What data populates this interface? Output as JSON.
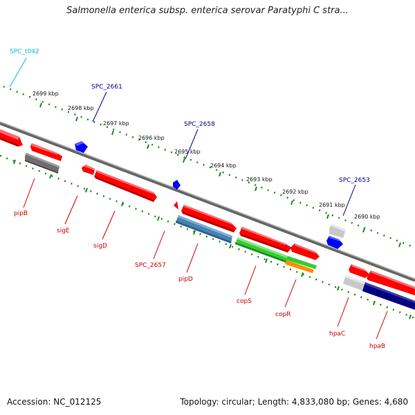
{
  "title": "Salmonella enterica subsp. enterica serovar Paratyphi C stra...",
  "footer": {
    "accession": "Accession: NC_012125",
    "summary": "Topology: circular; Length: 4,833,080 bp; Genes: 4,680"
  },
  "colors": {
    "backbone": "#808080",
    "tick_track": "#228b22",
    "gene_red": "#ff0000",
    "gene_blue": "#0000ff",
    "gene_gray": "#707070",
    "gene_lightgray": "#c8c8c8",
    "gene_steelblue": "#4682b4",
    "gene_green": "#32cd32",
    "gene_orange": "#ff8c00",
    "gene_navy": "#000080",
    "label_cyan": "#00bcd4",
    "label_blue": "#00008b",
    "label_red": "#cc0000"
  },
  "kbp_labels": [
    "2699 kbp",
    "2698 kbp",
    "2697 kbp",
    "2696 kbp",
    "2695 kbp",
    "2694 kbp",
    "2693 kbp",
    "2692 kbp",
    "2691 kbp",
    "2690 kbp"
  ],
  "top_labels": [
    {
      "text": "SPC_t042",
      "color": "#00bcd4"
    },
    {
      "text": "SPC_2661",
      "color": "#00008b"
    },
    {
      "text": "SPC_2658",
      "color": "#00008b"
    },
    {
      "text": "SPC_2653",
      "color": "#00008b"
    }
  ],
  "bottom_labels": [
    {
      "text": "pipB",
      "color": "#cc0000"
    },
    {
      "text": "sigE",
      "color": "#cc0000"
    },
    {
      "text": "sigD",
      "color": "#cc0000"
    },
    {
      "text": "SPC_2657",
      "color": "#cc0000"
    },
    {
      "text": "pipD",
      "color": "#cc0000"
    },
    {
      "text": "copS",
      "color": "#cc0000"
    },
    {
      "text": "copR",
      "color": "#cc0000"
    },
    {
      "text": "hpaC",
      "color": "#cc0000"
    },
    {
      "text": "hpaB",
      "color": "#cc0000"
    }
  ]
}
